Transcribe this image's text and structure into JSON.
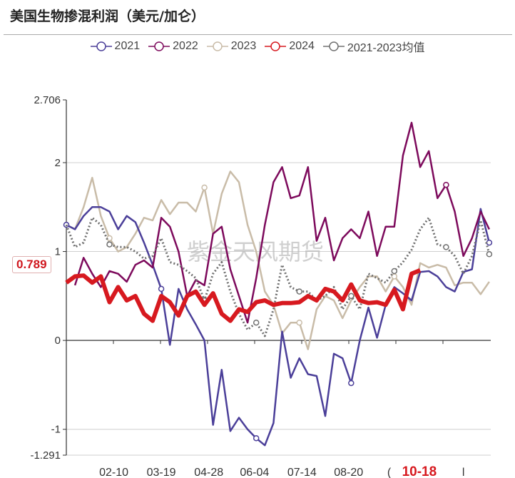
{
  "title": "美国生物掺混利润（美元/加仑）",
  "watermark": "紫金天风期货",
  "current_value_label": "0.789",
  "chart_data": {
    "type": "line",
    "title": "美国生物掺混利润（美元/加仑）",
    "ylim": [
      -1.291,
      2.706
    ],
    "y_ticks": [
      {
        "value": 2.706,
        "label": "2.706"
      },
      {
        "value": 2,
        "label": "2"
      },
      {
        "value": 1,
        "label": "1"
      },
      {
        "value": 0,
        "label": "0"
      },
      {
        "value": -1,
        "label": "-1"
      },
      {
        "value": -1.291,
        "label": "-1.291"
      }
    ],
    "x_ticks": [
      {
        "week": 5.5,
        "label": "02-10",
        "highlight": false
      },
      {
        "week": 11,
        "label": "03-19",
        "highlight": false
      },
      {
        "week": 16.5,
        "label": "04-28",
        "highlight": false
      },
      {
        "week": 21.8,
        "label": "06-04",
        "highlight": false
      },
      {
        "week": 27.3,
        "label": "07-14",
        "highlight": false
      },
      {
        "week": 32.7,
        "label": "08-20",
        "highlight": false
      },
      {
        "week": 37.4,
        "label": "(",
        "highlight": false
      },
      {
        "week": 40.9,
        "label": "10-18",
        "highlight": true
      },
      {
        "week": 46,
        "label": "l",
        "highlight": false
      }
    ],
    "grid": "horizontal",
    "legend_position": "top",
    "series": [
      {
        "name": "2021",
        "color": "#4b3f99",
        "style": "solid",
        "values": [
          1.3,
          1.25,
          1.4,
          1.5,
          1.5,
          1.45,
          1.25,
          1.4,
          1.33,
          1.1,
          0.85,
          0.58,
          -0.05,
          0.58,
          0.35,
          0.18,
          0.0,
          -0.95,
          -0.33,
          -1.02,
          -0.87,
          -1.0,
          -1.1,
          -1.18,
          -0.93,
          0.1,
          -0.42,
          -0.2,
          -0.38,
          -0.4,
          -0.85,
          -0.15,
          -0.2,
          -0.48,
          0.0,
          0.37,
          0.03,
          0.4,
          0.6,
          0.53,
          0.45,
          0.77,
          0.78,
          0.72,
          0.6,
          0.55,
          0.77,
          0.8,
          1.48,
          1.1
        ]
      },
      {
        "name": "2022",
        "color": "#7d0a5c",
        "style": "solid",
        "values": [
          null,
          0.62,
          0.93,
          0.75,
          0.6,
          0.78,
          0.75,
          0.66,
          0.85,
          0.9,
          0.82,
          1.38,
          1.28,
          1.0,
          0.5,
          0.68,
          0.62,
          1.2,
          1.28,
          0.8,
          0.5,
          0.2,
          0.7,
          1.3,
          1.78,
          1.95,
          1.6,
          1.63,
          1.95,
          1.12,
          1.38,
          0.9,
          1.15,
          1.25,
          1.15,
          1.45,
          0.95,
          1.28,
          1.28,
          2.08,
          2.45,
          1.95,
          2.13,
          1.6,
          1.75,
          1.45,
          0.95,
          1.15,
          1.45,
          1.25
        ]
      },
      {
        "name": "2023",
        "color": "#c9bca8",
        "style": "solid",
        "values": [
          1.3,
          1.25,
          1.5,
          1.83,
          1.4,
          1.15,
          1.0,
          1.05,
          1.2,
          1.38,
          1.35,
          1.58,
          1.42,
          1.55,
          1.55,
          1.45,
          1.72,
          1.2,
          1.65,
          1.9,
          1.78,
          1.3,
          1.0,
          0.55,
          0.4,
          0.08,
          0.2,
          0.2,
          -0.1,
          0.35,
          0.5,
          0.45,
          0.25,
          0.45,
          0.6,
          0.72,
          0.72,
          0.55,
          0.72,
          0.6,
          0.4,
          0.87,
          0.82,
          0.85,
          0.82,
          0.62,
          0.65,
          0.65,
          0.52,
          0.66
        ]
      },
      {
        "name": "2024",
        "color": "#d7191f",
        "style": "thick",
        "values": [
          0.65,
          0.72,
          0.73,
          0.65,
          0.72,
          0.43,
          0.6,
          0.45,
          0.5,
          0.3,
          0.22,
          0.5,
          0.43,
          0.28,
          0.5,
          0.55,
          0.4,
          0.53,
          0.3,
          0.22,
          0.35,
          0.32,
          0.43,
          0.45,
          0.4,
          0.42,
          0.42,
          0.43,
          0.5,
          0.45,
          0.58,
          0.55,
          0.45,
          0.63,
          0.45,
          0.42,
          0.43,
          0.4,
          0.57,
          0.35,
          0.75,
          0.789
        ]
      },
      {
        "name": "2021-2023均值",
        "color": "#707070",
        "style": "dotted",
        "values": [
          1.3,
          1.05,
          1.1,
          1.38,
          1.3,
          1.08,
          1.05,
          1.05,
          1.0,
          0.92,
          0.95,
          1.15,
          0.88,
          0.85,
          0.78,
          0.7,
          0.45,
          0.75,
          0.88,
          0.55,
          0.3,
          0.12,
          0.2,
          0.05,
          0.35,
          0.85,
          0.6,
          0.55,
          0.55,
          0.45,
          0.5,
          0.6,
          0.35,
          0.5,
          0.35,
          0.75,
          0.7,
          0.65,
          0.78,
          0.88,
          1.02,
          1.25,
          1.38,
          1.08,
          1.05,
          0.95,
          0.75,
          0.95,
          1.35,
          0.97
        ]
      }
    ]
  }
}
